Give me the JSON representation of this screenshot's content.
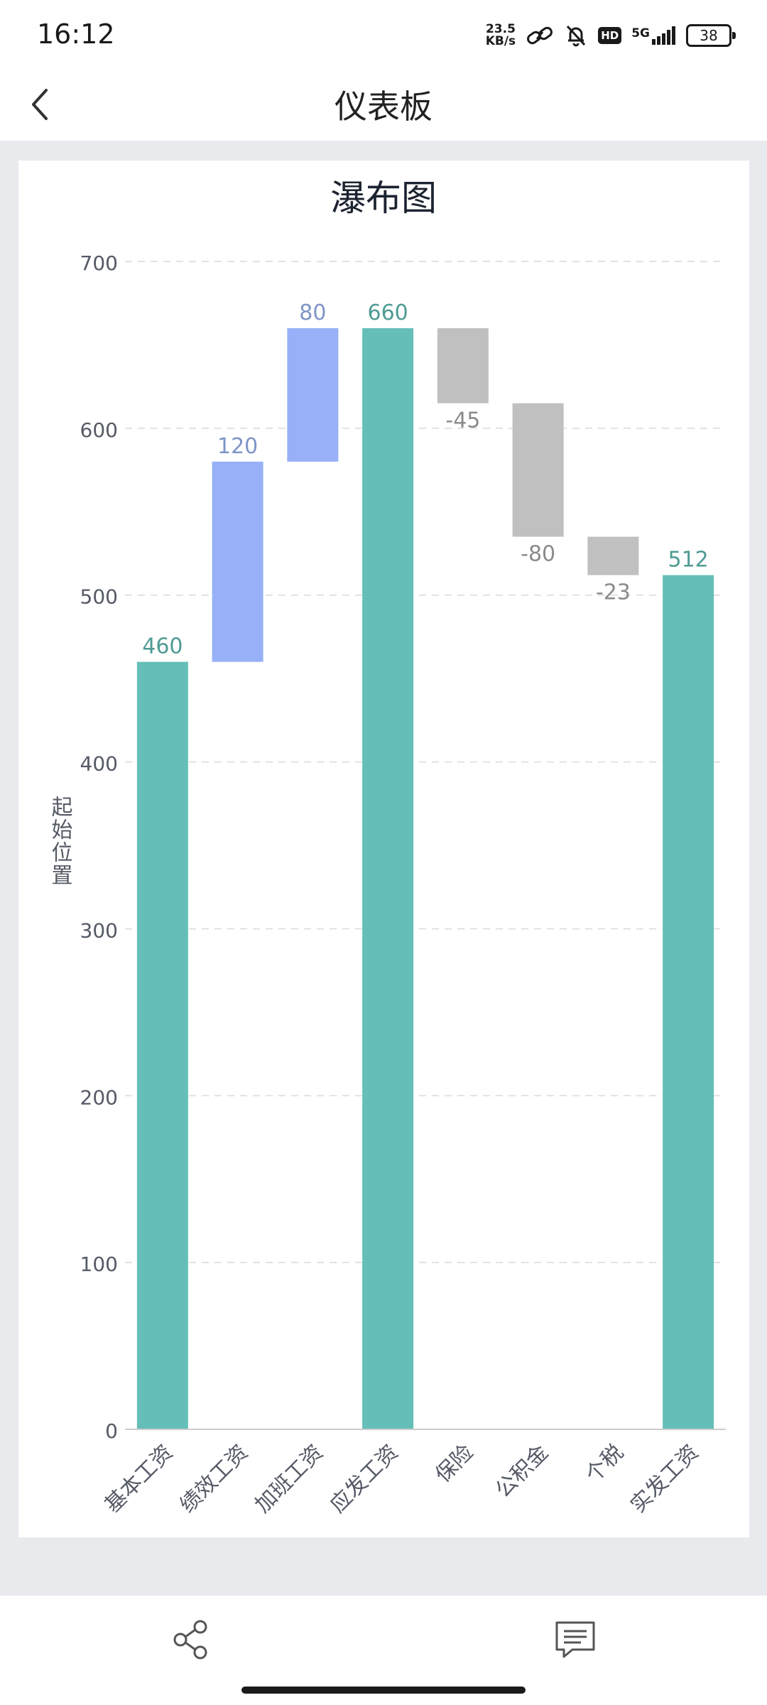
{
  "status_bar": {
    "time": "16:12",
    "net_speed_value": "23.5",
    "net_speed_unit": "KB/s",
    "hd_label": "HD",
    "signal_label": "5G",
    "battery_level": "38"
  },
  "header": {
    "title": "仪表板",
    "back_icon": "chevron-left-icon"
  },
  "chart_data": {
    "type": "waterfall",
    "title": "瀑布图",
    "ylabel": "起始位置",
    "xlabel": "",
    "ylim": [
      0,
      700
    ],
    "yticks": [
      0,
      100,
      200,
      300,
      400,
      500,
      600,
      700
    ],
    "grid": true,
    "categories": [
      "基本工资",
      "绩效工资",
      "加班工资",
      "应发工资",
      "保险",
      "公积金",
      "个税",
      "实发工资"
    ],
    "bars": [
      {
        "category": "基本工资",
        "start": 0,
        "end": 460,
        "label": "460",
        "kind": "total"
      },
      {
        "category": "绩效工资",
        "start": 460,
        "end": 580,
        "label": "120",
        "kind": "increase"
      },
      {
        "category": "加班工资",
        "start": 580,
        "end": 660,
        "label": "80",
        "kind": "increase"
      },
      {
        "category": "应发工资",
        "start": 0,
        "end": 660,
        "label": "660",
        "kind": "total"
      },
      {
        "category": "保险",
        "start": 660,
        "end": 615,
        "label": "-45",
        "kind": "decrease"
      },
      {
        "category": "公积金",
        "start": 615,
        "end": 535,
        "label": "-80",
        "kind": "decrease"
      },
      {
        "category": "个税",
        "start": 535,
        "end": 512,
        "label": "-23",
        "kind": "decrease"
      },
      {
        "category": "实发工资",
        "start": 0,
        "end": 512,
        "label": "512",
        "kind": "total"
      }
    ],
    "colors": {
      "total": "#65bfb8",
      "increase": "#97b0f7",
      "decrease": "#c0c0c0",
      "total_label": "#4f9b94",
      "increase_label": "#7f95c8",
      "decrease_label": "#8a8a8a"
    }
  },
  "bottom_bar": {
    "share_icon": "share-icon",
    "comment_icon": "comment-icon"
  }
}
